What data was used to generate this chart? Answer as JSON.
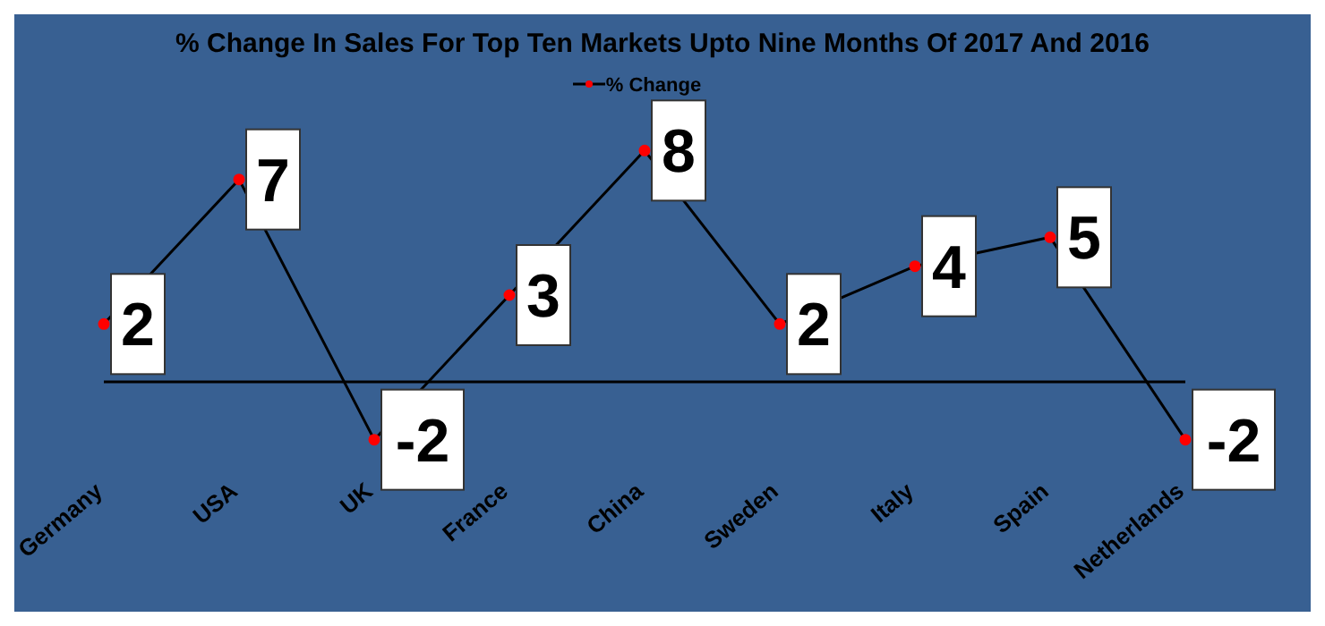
{
  "chart_data": {
    "type": "line",
    "title": "% Change In Sales For Top Ten Markets Upto Nine Months Of 2017 And 2016",
    "categories": [
      "Germany",
      "USA",
      "UK",
      "France",
      "China",
      "Sweden",
      "Italy",
      "Spain",
      "Netherlands"
    ],
    "series": [
      {
        "name": "% Change",
        "color": "#000000",
        "values": [
          2,
          7,
          -2,
          3,
          8,
          2,
          4,
          5,
          -2
        ]
      }
    ],
    "marker": "circle",
    "data_labels": true,
    "legend": "top",
    "grid": false
  }
}
